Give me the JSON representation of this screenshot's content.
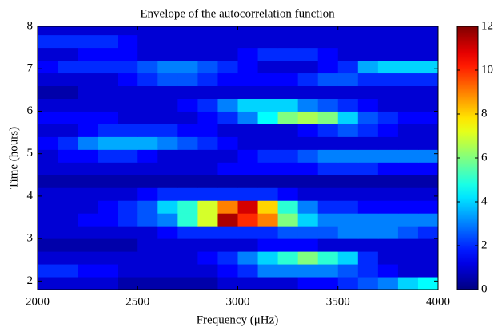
{
  "chart_data": {
    "type": "heatmap",
    "title": "Envelope of the autocorrelation function",
    "xlabel": "Frequency (μHz)",
    "ylabel": "Time (hours)",
    "x": [
      2050,
      2150,
      2250,
      2350,
      2450,
      2550,
      2650,
      2750,
      2850,
      2950,
      3050,
      3150,
      3250,
      3350,
      3450,
      3550,
      3650,
      3750,
      3850,
      3950
    ],
    "y": [
      1.95,
      2.25,
      2.55,
      2.85,
      3.15,
      3.45,
      3.75,
      4.05,
      4.35,
      4.65,
      4.95,
      5.25,
      5.55,
      5.85,
      6.15,
      6.45,
      6.75,
      7.05,
      7.35,
      7.65,
      7.95
    ],
    "z": [
      [
        1,
        1,
        1,
        1,
        0.5,
        0.5,
        0.5,
        0.5,
        0.5,
        1,
        1,
        1,
        1,
        1.5,
        1.5,
        2,
        2.5,
        3,
        4,
        4.5
      ],
      [
        2,
        2,
        1.5,
        1.5,
        1,
        1,
        1,
        1,
        1,
        1.5,
        2,
        3,
        3,
        3,
        3,
        2.5,
        2,
        1.5,
        1,
        1
      ],
      [
        1,
        1,
        1,
        1,
        1,
        1,
        1,
        1,
        1.5,
        2,
        3,
        4,
        5,
        6,
        5,
        4,
        2,
        1,
        1,
        1
      ],
      [
        0.5,
        0.5,
        0.5,
        0.5,
        0.5,
        1,
        1,
        1,
        1,
        1,
        1,
        1.5,
        1.5,
        1.5,
        1,
        1,
        1,
        1,
        1,
        1
      ],
      [
        1,
        1,
        1,
        1,
        1,
        1,
        1.5,
        2,
        2,
        2,
        2,
        2,
        2.5,
        2.5,
        2.5,
        3,
        3,
        3,
        2.5,
        2
      ],
      [
        1,
        1,
        1.5,
        1.5,
        2,
        2.5,
        3,
        5,
        7,
        11.5,
        10,
        9,
        6,
        4,
        3,
        3,
        3,
        3,
        3,
        3
      ],
      [
        1,
        1,
        1,
        1.5,
        2,
        2.5,
        4,
        5,
        7,
        9,
        11,
        8,
        5,
        3,
        2,
        2,
        1.5,
        1.5,
        1.5,
        1.5
      ],
      [
        1,
        1,
        1,
        1,
        1,
        1.5,
        2,
        2,
        2,
        2,
        2,
        2,
        1.5,
        1,
        1,
        1,
        1,
        1,
        1,
        1
      ],
      [
        0.5,
        0.5,
        0.5,
        0.5,
        0.5,
        0.5,
        0.5,
        0.5,
        0.5,
        0.5,
        0.5,
        0.5,
        0.5,
        0.5,
        0.5,
        0.5,
        0.5,
        0.5,
        0.5,
        0.5
      ],
      [
        1,
        1,
        1,
        1,
        1,
        1,
        1,
        1,
        1,
        1.5,
        1.5,
        1.5,
        1.5,
        1.5,
        2,
        2,
        2,
        1.5,
        1.5,
        1.5
      ],
      [
        1,
        1.5,
        1.5,
        2,
        2,
        1.5,
        1,
        1,
        1,
        1,
        1.5,
        2,
        2,
        2.5,
        3,
        3,
        3,
        3,
        3,
        3
      ],
      [
        1.5,
        2,
        3,
        3.5,
        3.5,
        3.5,
        3,
        2.5,
        2,
        1.5,
        1,
        1,
        1,
        1,
        1,
        1,
        1,
        1,
        1,
        1
      ],
      [
        1,
        1,
        1.5,
        2,
        2,
        2,
        2,
        1.5,
        1.5,
        1,
        1,
        1,
        1,
        1.5,
        2,
        2.5,
        2,
        1.5,
        1,
        1
      ],
      [
        1.5,
        1.5,
        1.5,
        1.5,
        1,
        1,
        1,
        1,
        1.5,
        2,
        3,
        4.5,
        6,
        6.5,
        6,
        4,
        2.5,
        2,
        1.5,
        1.5
      ],
      [
        1,
        1,
        1,
        1,
        1,
        1,
        1,
        1.5,
        2,
        3,
        4,
        4,
        4,
        3,
        2.5,
        2,
        1.5,
        1,
        1,
        1
      ],
      [
        0.5,
        0.5,
        1,
        1,
        1,
        1,
        1,
        1,
        1,
        1,
        1,
        1,
        1,
        1,
        1,
        1,
        1,
        1,
        1,
        1
      ],
      [
        1,
        1,
        1,
        1,
        1.5,
        2,
        2.5,
        2.5,
        2,
        1.5,
        1.5,
        1.5,
        1.5,
        2,
        2.5,
        2.5,
        2,
        2,
        2,
        2
      ],
      [
        1.5,
        2,
        2,
        2,
        2,
        2.5,
        3,
        3,
        2.5,
        2,
        1.5,
        1,
        1,
        1,
        1.5,
        2,
        3.5,
        4,
        4,
        4
      ],
      [
        1,
        1,
        1.5,
        1.5,
        1.5,
        1,
        1,
        1,
        1,
        1,
        1.5,
        2,
        2,
        2,
        1.5,
        1,
        1,
        1,
        1,
        1
      ],
      [
        2,
        2,
        2,
        2,
        1.5,
        1,
        1,
        1,
        1,
        1,
        1,
        1,
        1,
        1,
        1,
        1,
        1,
        1,
        1,
        1
      ],
      [
        1,
        1,
        1,
        1,
        1,
        1,
        1,
        1,
        1,
        1,
        1,
        1,
        1,
        1,
        1,
        1,
        1,
        1,
        1,
        1
      ]
    ],
    "xlim": [
      2000,
      4000
    ],
    "xticks": [
      2000,
      2500,
      3000,
      3500,
      4000
    ],
    "ylim": [
      1.8,
      8
    ],
    "yticks": [
      2,
      3,
      4,
      5,
      6,
      7,
      8
    ],
    "colormap": "jet",
    "zlim": [
      0,
      12
    ],
    "colorbar_ticks": [
      0,
      2,
      4,
      6,
      8,
      10,
      12
    ]
  }
}
